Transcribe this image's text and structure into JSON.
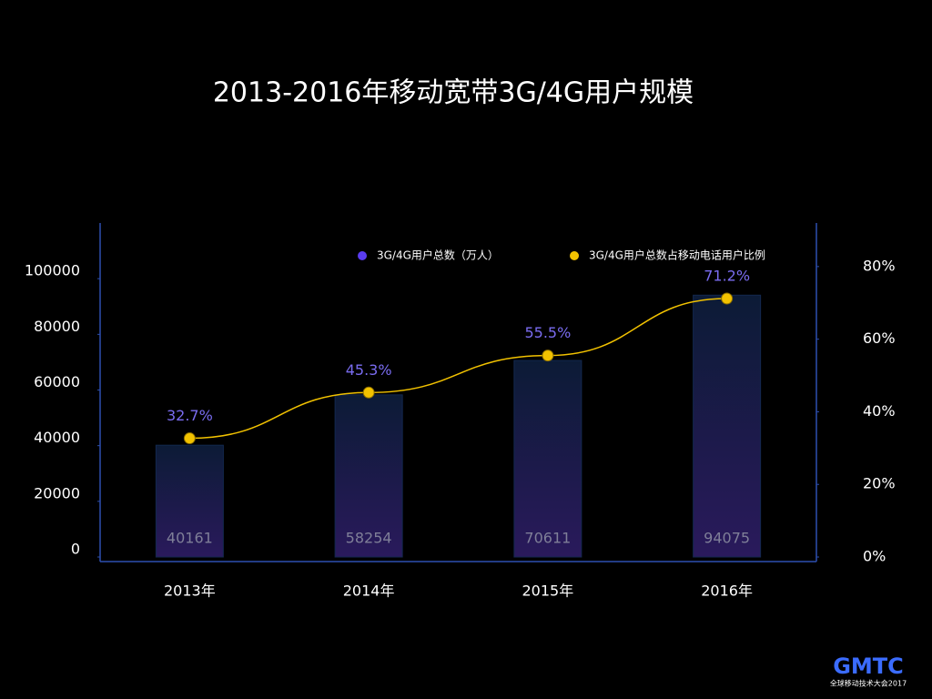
{
  "chart_data": {
    "type": "bar-line",
    "title": "2013-2016年移动宽带3G/4G用户规模",
    "categories": [
      "2013年",
      "2014年",
      "2015年",
      "2016年"
    ],
    "series": [
      {
        "name": "3G/4G用户总数（万人）",
        "color": "#5a3cf0",
        "type": "bar",
        "values": [
          40161,
          58254,
          70611,
          94075
        ]
      },
      {
        "name": "3G/4G用户总数占移动电话用户比例",
        "color": "#f2c200",
        "type": "line",
        "axis": "y2",
        "values": [
          32.7,
          45.3,
          55.5,
          71.2
        ],
        "value_labels": [
          "32.7%",
          "45.3%",
          "55.5%",
          "71.2%"
        ]
      }
    ],
    "ylim": [
      0,
      120000
    ],
    "yticks": [
      0,
      20000,
      40000,
      60000,
      80000,
      100000
    ],
    "y2lim": [
      0,
      92
    ],
    "y2ticks": [
      {
        "value": 0,
        "label": "0%"
      },
      {
        "value": 20,
        "label": "20%"
      },
      {
        "value": 40,
        "label": "40%"
      },
      {
        "value": 60,
        "label": "60%"
      },
      {
        "value": 80,
        "label": "80%"
      }
    ],
    "grid": false,
    "legend": "top"
  },
  "logo": {
    "name": "GMTC",
    "subtitle": "全球移动技术大会2017"
  }
}
